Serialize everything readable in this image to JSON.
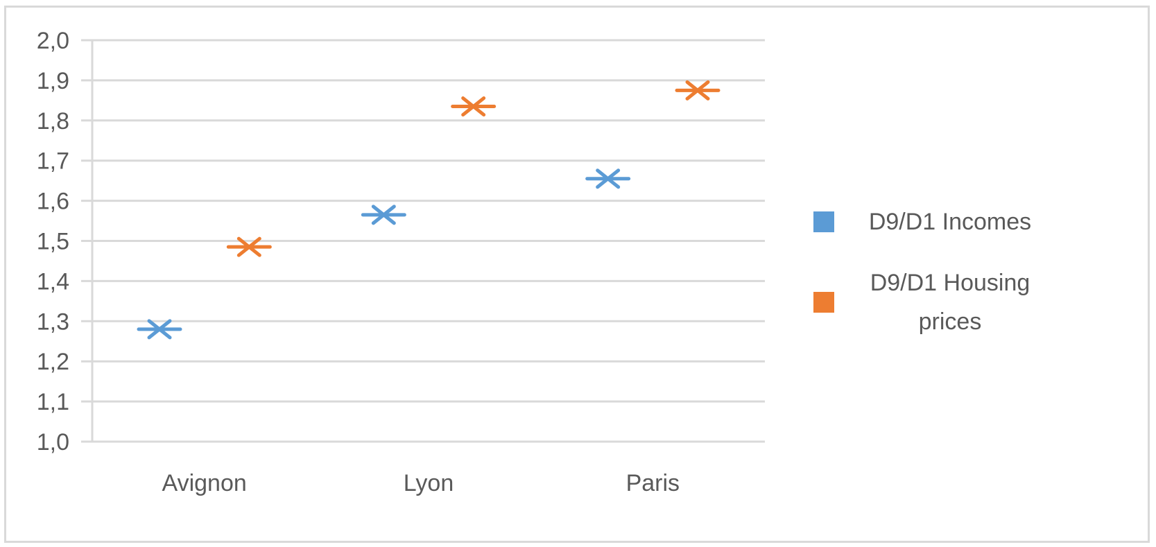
{
  "chart_data": {
    "type": "scatter",
    "title": "",
    "xlabel": "",
    "ylabel": "",
    "categories": [
      "Avignon",
      "Lyon",
      "Paris"
    ],
    "ylim": [
      1.0,
      2.0
    ],
    "y_ticks": [
      "1,0",
      "1,1",
      "1,2",
      "1,3",
      "1,4",
      "1,5",
      "1,6",
      "1,7",
      "1,8",
      "1,9",
      "2,0"
    ],
    "grid": true,
    "legend_position": "right",
    "marker": "asterisk",
    "series": [
      {
        "name": "D9/D1 Incomes",
        "legend_lines": [
          "D9/D1 Incomes"
        ],
        "color": "#5b9bd5",
        "values": [
          1.28,
          1.565,
          1.655
        ]
      },
      {
        "name": "D9/D1 Housing prices",
        "legend_lines": [
          "D9/D1 Housing",
          "prices"
        ],
        "color": "#ed7d31",
        "values": [
          1.485,
          1.835,
          1.875
        ]
      }
    ]
  }
}
